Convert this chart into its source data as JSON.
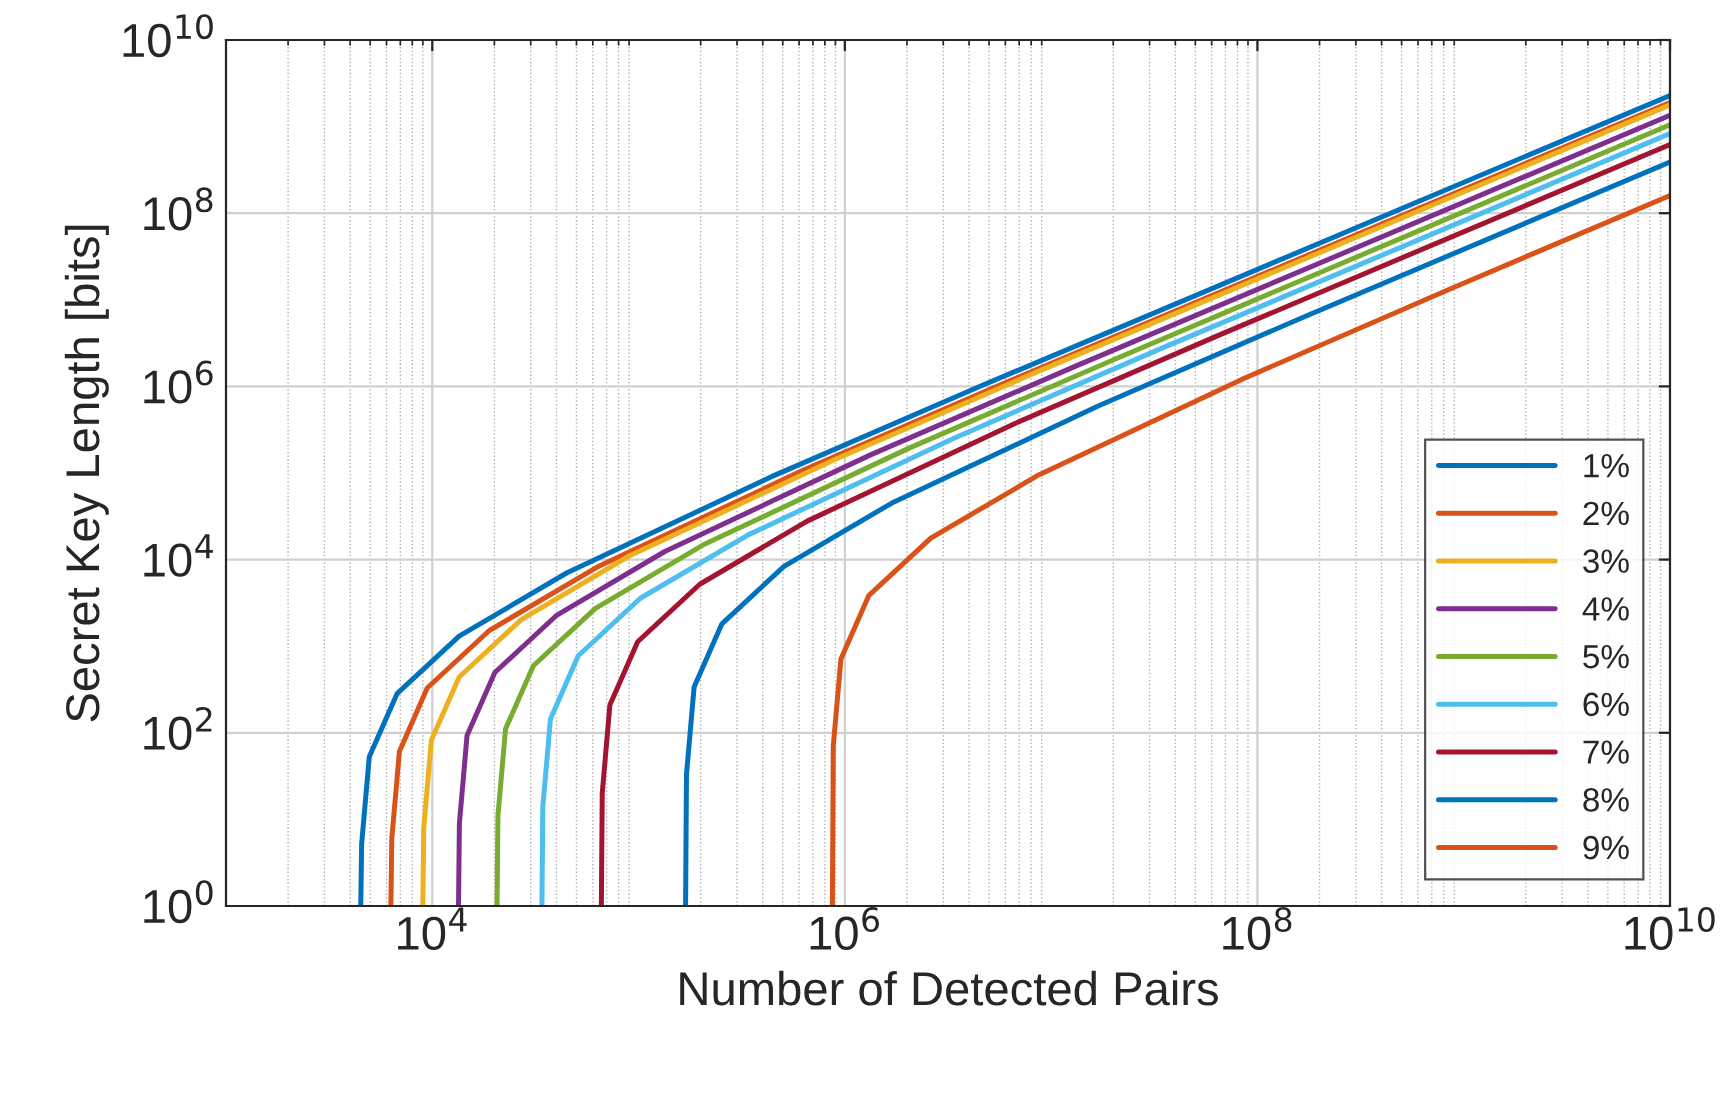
{
  "chart_data": {
    "type": "line",
    "xlabel": "Number of Detected Pairs",
    "ylabel": "Secret Key Length [bits]",
    "log": "xy",
    "grid": true,
    "legend": "bottom right",
    "marker": "none",
    "line_style": "solid",
    "xlim": [
      1000,
      10000000000
    ],
    "ylim": [
      1,
      10000000000
    ],
    "xticks": [
      {
        "value": 10000,
        "label": "10$^{4}$"
      },
      {
        "value": 1000000,
        "label": "10$^{6}$"
      },
      {
        "value": 100000000,
        "label": "10$^{8}$"
      },
      {
        "value": 10000000000,
        "label": "10$^{10}$"
      }
    ],
    "yticks": [
      {
        "value": 1,
        "label": "10$^{0}$"
      },
      {
        "value": 100,
        "label": "10$^{2}$"
      },
      {
        "value": 10000,
        "label": "10$^{4}$"
      },
      {
        "value": 1000000,
        "label": "10$^{6}$"
      },
      {
        "value": 100000000,
        "label": "10$^{8}$"
      },
      {
        "value": 10000000000,
        "label": "10$^{10}$"
      }
    ],
    "series": [
      {
        "name": "1%",
        "color": "#0072bd",
        "x": [
          4500,
          4545,
          4950,
          6750,
          13500,
          45000,
          450000,
          4500000,
          10000000000
        ],
        "values": [
          1,
          5.2,
          53,
          283,
          1306,
          7045,
          92700,
          997000,
          2290000000
        ]
      },
      {
        "name": "2%",
        "color": "#d95319",
        "x": [
          6300,
          6363,
          6930,
          9450,
          18900,
          63000,
          630000,
          6300000,
          10000000000
        ],
        "values": [
          1,
          6,
          61,
          329,
          1518,
          8190,
          108000,
          1160000,
          1900000000
        ]
      },
      {
        "name": "3%",
        "color": "#edb120",
        "x": [
          9000,
          9090,
          9900,
          13500,
          27000,
          90000,
          900000,
          9000000,
          10000000000
        ],
        "values": [
          1,
          8,
          82,
          441,
          2030,
          11000,
          144000,
          1550000,
          1780000000
        ]
      },
      {
        "name": "4%",
        "color": "#7e2f8e",
        "x": [
          13400,
          13534,
          14740,
          20100,
          40200,
          134000,
          1340000,
          13400000,
          10000000000
        ],
        "values": [
          1,
          9,
          93,
          497,
          2290,
          12400,
          163000,
          1750000,
          1350000000
        ]
      },
      {
        "name": "5%",
        "color": "#77ac30",
        "x": [
          20600,
          20806,
          22660,
          30900,
          61800,
          206000,
          2060000,
          20600000,
          10000000000
        ],
        "values": [
          1,
          11,
          111,
          595,
          2740,
          14800,
          195000,
          2090000,
          1050000000
        ]
      },
      {
        "name": "6%",
        "color": "#4dbeee",
        "x": [
          34000,
          34340,
          37400,
          51000,
          102000,
          340000,
          3400000,
          34000000,
          10000000000
        ],
        "values": [
          1,
          14,
          144,
          776,
          3580,
          19300,
          254000,
          2730000,
          830000000
        ]
      },
      {
        "name": "7%",
        "color": "#a2142f",
        "x": [
          66000,
          66660,
          72600,
          99000,
          198000,
          660000,
          6600000,
          66000000,
          10000000000
        ],
        "values": [
          1,
          20,
          210,
          1125,
          5190,
          28000,
          368000,
          3960000,
          620000000
        ]
      },
      {
        "name": "8%",
        "color": "#0072bd",
        "x": [
          169000,
          170690,
          185900,
          253500,
          507000,
          1690000,
          16900000,
          169000000,
          10000000000
        ],
        "values": [
          1,
          33,
          337,
          1813,
          8360,
          45000,
          593000,
          6380000,
          390000000
        ]
      },
      {
        "name": "9%",
        "color": "#d95319",
        "x": [
          870000,
          878700,
          957000,
          1305000,
          2610000,
          8700000,
          87000000,
          870000000,
          10000000000
        ],
        "values": [
          1,
          70,
          713,
          3830,
          17700,
          95000,
          1250000,
          13500000,
          160000000
        ]
      }
    ]
  }
}
